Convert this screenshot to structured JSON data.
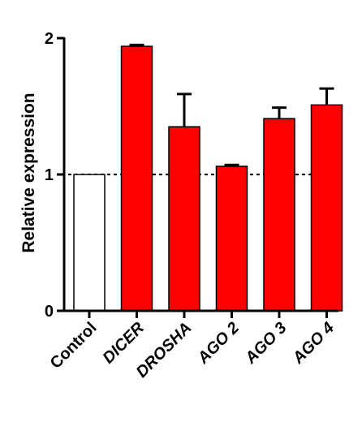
{
  "chart_data": {
    "type": "bar",
    "categories": [
      "Control",
      "DICER",
      "DROSHA",
      "AGO 2",
      "AGO 3",
      "AGO 4"
    ],
    "category_style": [
      "normal",
      "italic",
      "italic",
      "italic",
      "italic",
      "italic"
    ],
    "values": [
      1.0,
      1.94,
      1.35,
      1.06,
      1.41,
      1.51
    ],
    "error_upper": [
      0.0,
      0.01,
      0.24,
      0.01,
      0.08,
      0.12
    ],
    "bar_colors": [
      "#ffffff",
      "#ff0000",
      "#ff0000",
      "#ff0000",
      "#ff0000",
      "#ff0000"
    ],
    "bar_stroke": "#000000",
    "ylabel": "Relative expression",
    "xlabel": "",
    "title": "",
    "ylim": [
      0,
      2
    ],
    "y_ticks": [
      0,
      1,
      2
    ],
    "reference_line": 1,
    "grid": false
  }
}
